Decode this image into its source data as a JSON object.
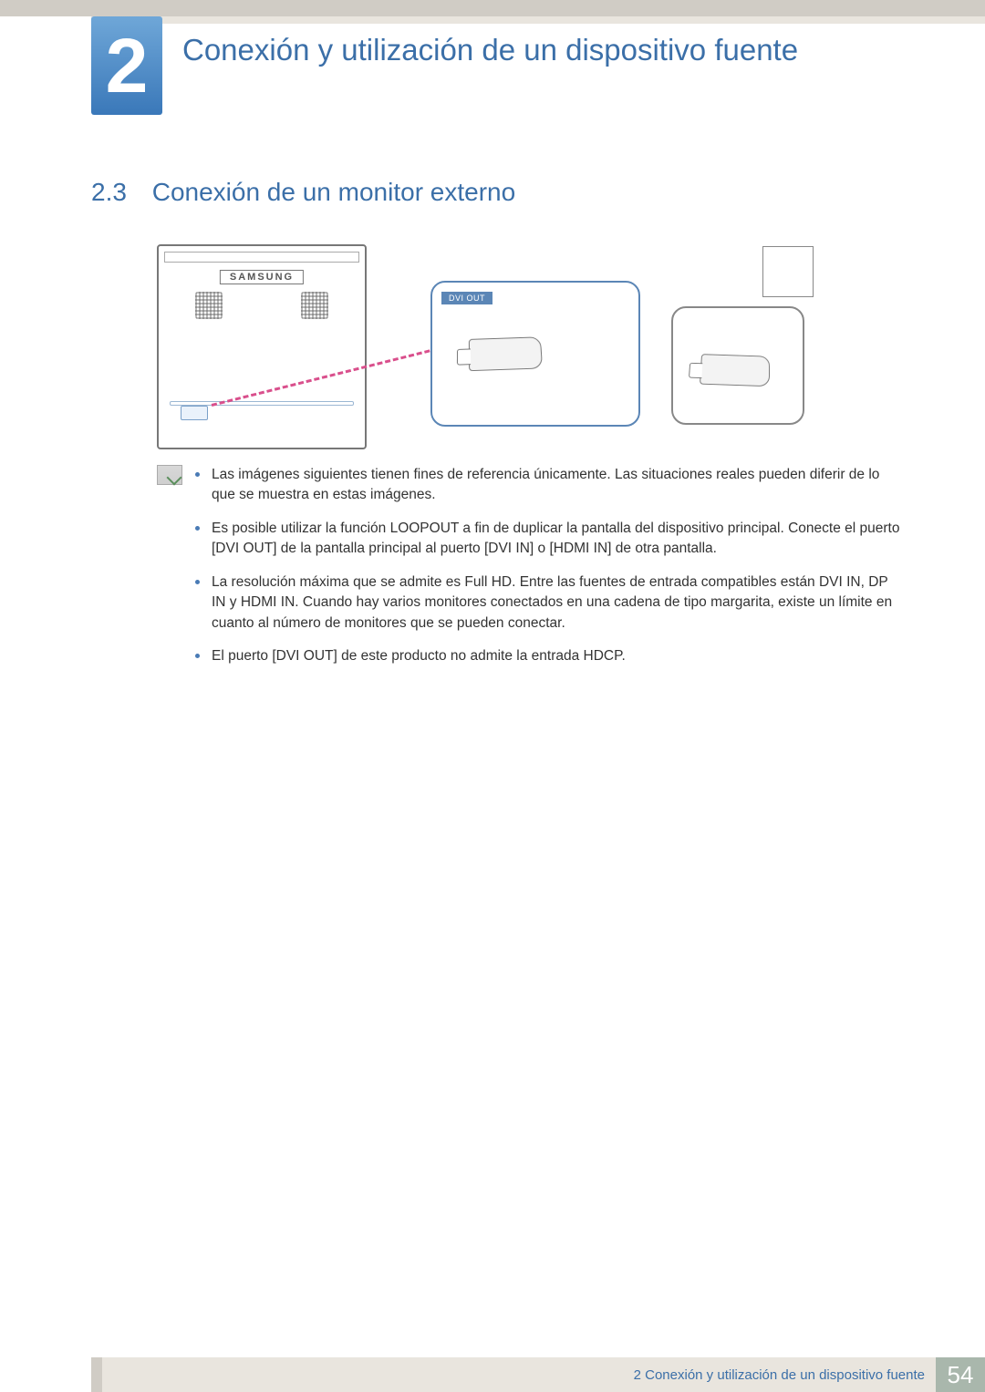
{
  "colors": {
    "accent": "#3b6fa8",
    "badge_gradient_top": "#6fa7d8",
    "badge_gradient_bottom": "#3a78b9",
    "top_bar": "#d0ccc5",
    "header_strip": "#e9e5de",
    "callout_border": "#5b86b6",
    "bullet": "#4a7bb5",
    "cable_dash": "#d94f8c",
    "footer_page_bg": "#a9b7ac"
  },
  "chapter": {
    "number": "2",
    "title": "Conexión y utilización de un dispositivo fuente"
  },
  "section": {
    "number": "2.3",
    "title": "Conexión de un monitor externo"
  },
  "diagram": {
    "brand": "SAMSUNG",
    "callout_label": "DVI OUT"
  },
  "notes": [
    "Las imágenes siguientes tienen fines de referencia únicamente. Las situaciones reales pueden diferir de lo que se muestra en estas imágenes.",
    "Es posible utilizar la función LOOPOUT a fin de duplicar la pantalla del dispositivo principal. Conecte el puerto [DVI OUT] de la pantalla principal al puerto [DVI IN] o [HDMI IN] de otra pantalla.",
    "La resolución máxima que se admite es Full HD. Entre las fuentes de entrada compatibles están DVI IN, DP IN y HDMI IN. Cuando hay varios monitores conectados en una cadena de tipo margarita, existe un límite en cuanto al número de monitores que se pueden conectar.",
    "El puerto [DVI OUT] de este producto no admite la entrada HDCP."
  ],
  "footer": {
    "text": "2 Conexión y utilización de un dispositivo fuente",
    "page": "54"
  }
}
